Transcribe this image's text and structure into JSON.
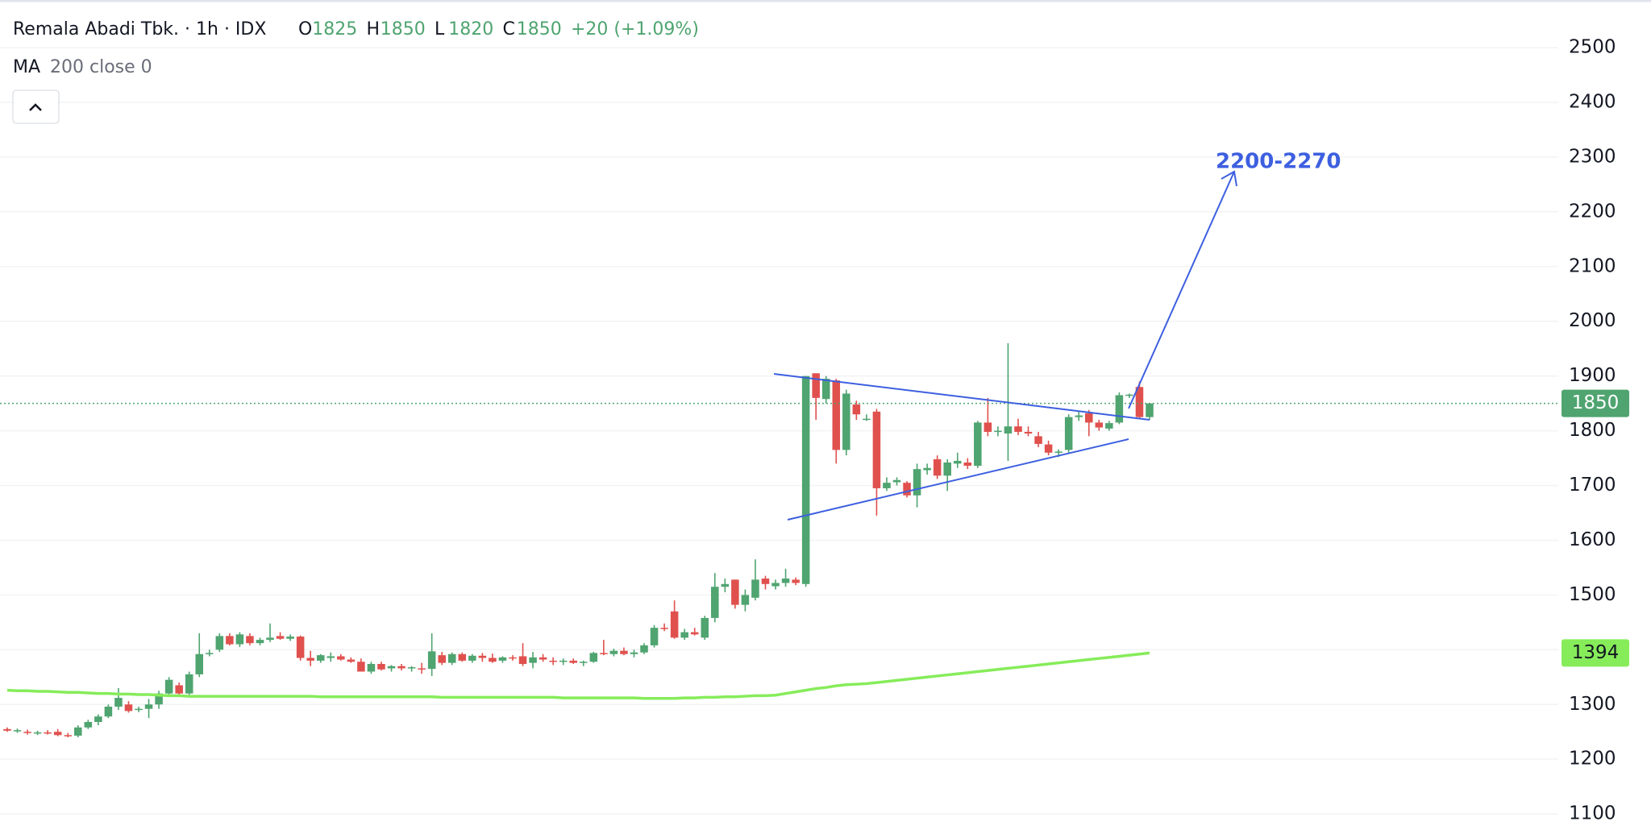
{
  "chart_data": {
    "type": "candlestick",
    "title": "Remala Abadi Tbk. · 1h · IDX",
    "quote_labels": [
      "O",
      "H",
      "L",
      "C"
    ],
    "change": "+20 (+1.09%)",
    "indicator": {
      "name": "MA",
      "params": "200 close 0"
    },
    "annotation": "2200-2270",
    "up_color": "#4fa470",
    "down_color": "#e0514e",
    "ohlc": [
      [
        1255,
        1258,
        1250,
        1252
      ],
      [
        1252,
        1256,
        1248,
        1253
      ],
      [
        1250,
        1254,
        1245,
        1248
      ],
      [
        1248,
        1252,
        1244,
        1249
      ],
      [
        1249,
        1253,
        1245,
        1247
      ],
      [
        1250,
        1255,
        1242,
        1244
      ],
      [
        1244,
        1248,
        1240,
        1243
      ],
      [
        1243,
        1262,
        1240,
        1258
      ],
      [
        1258,
        1272,
        1255,
        1268
      ],
      [
        1268,
        1282,
        1262,
        1278
      ],
      [
        1278,
        1300,
        1275,
        1296
      ],
      [
        1296,
        1330,
        1290,
        1312
      ],
      [
        1300,
        1306,
        1285,
        1288
      ],
      [
        1290,
        1296,
        1286,
        1292
      ],
      [
        1292,
        1310,
        1275,
        1300
      ],
      [
        1300,
        1325,
        1292,
        1320
      ],
      [
        1320,
        1350,
        1315,
        1345
      ],
      [
        1335,
        1340,
        1318,
        1320
      ],
      [
        1320,
        1360,
        1315,
        1355
      ],
      [
        1355,
        1430,
        1350,
        1392
      ],
      [
        1392,
        1400,
        1388,
        1394
      ],
      [
        1400,
        1430,
        1396,
        1425
      ],
      [
        1425,
        1430,
        1408,
        1410
      ],
      [
        1410,
        1432,
        1405,
        1428
      ],
      [
        1425,
        1430,
        1408,
        1412
      ],
      [
        1412,
        1422,
        1408,
        1418
      ],
      [
        1418,
        1448,
        1414,
        1422
      ],
      [
        1425,
        1432,
        1418,
        1420
      ],
      [
        1420,
        1428,
        1416,
        1424
      ],
      [
        1424,
        1426,
        1380,
        1385
      ],
      [
        1385,
        1398,
        1370,
        1380
      ],
      [
        1380,
        1392,
        1376,
        1390
      ],
      [
        1385,
        1395,
        1378,
        1388
      ],
      [
        1388,
        1392,
        1380,
        1382
      ],
      [
        1382,
        1386,
        1376,
        1378
      ],
      [
        1378,
        1384,
        1360,
        1360
      ],
      [
        1360,
        1378,
        1356,
        1374
      ],
      [
        1374,
        1378,
        1362,
        1364
      ],
      [
        1366,
        1372,
        1360,
        1370
      ],
      [
        1370,
        1374,
        1362,
        1366
      ],
      [
        1366,
        1370,
        1360,
        1368
      ],
      [
        1366,
        1376,
        1356,
        1365
      ],
      [
        1365,
        1430,
        1352,
        1397
      ],
      [
        1390,
        1396,
        1372,
        1376
      ],
      [
        1376,
        1395,
        1372,
        1392
      ],
      [
        1392,
        1395,
        1378,
        1380
      ],
      [
        1380,
        1392,
        1376,
        1389
      ],
      [
        1389,
        1394,
        1378,
        1385
      ],
      [
        1385,
        1393,
        1376,
        1378
      ],
      [
        1380,
        1388,
        1376,
        1386
      ],
      [
        1386,
        1390,
        1380,
        1384
      ],
      [
        1388,
        1412,
        1370,
        1374
      ],
      [
        1376,
        1396,
        1366,
        1386
      ],
      [
        1386,
        1392,
        1378,
        1382
      ],
      [
        1380,
        1386,
        1372,
        1378
      ],
      [
        1378,
        1384,
        1372,
        1380
      ],
      [
        1380,
        1384,
        1374,
        1376
      ],
      [
        1376,
        1380,
        1370,
        1378
      ],
      [
        1378,
        1396,
        1376,
        1394
      ],
      [
        1394,
        1418,
        1390,
        1392
      ],
      [
        1392,
        1402,
        1388,
        1398
      ],
      [
        1398,
        1404,
        1390,
        1392
      ],
      [
        1392,
        1400,
        1386,
        1395
      ],
      [
        1395,
        1412,
        1392,
        1408
      ],
      [
        1408,
        1445,
        1404,
        1440
      ],
      [
        1440,
        1448,
        1434,
        1438
      ],
      [
        1470,
        1490,
        1420,
        1422
      ],
      [
        1422,
        1438,
        1418,
        1432
      ],
      [
        1432,
        1440,
        1426,
        1428
      ],
      [
        1422,
        1462,
        1418,
        1458
      ],
      [
        1458,
        1540,
        1450,
        1515
      ],
      [
        1515,
        1530,
        1505,
        1520
      ],
      [
        1528,
        1528,
        1475,
        1482
      ],
      [
        1482,
        1510,
        1470,
        1500
      ],
      [
        1495,
        1565,
        1490,
        1528
      ],
      [
        1530,
        1535,
        1510,
        1520
      ],
      [
        1516,
        1528,
        1510,
        1522
      ],
      [
        1522,
        1548,
        1515,
        1530
      ],
      [
        1528,
        1532,
        1518,
        1522
      ],
      [
        1520,
        1900,
        1515,
        1900
      ],
      [
        1905,
        1905,
        1820,
        1860
      ],
      [
        1858,
        1900,
        1850,
        1895
      ],
      [
        1892,
        1895,
        1740,
        1765
      ],
      [
        1765,
        1875,
        1755,
        1868
      ],
      [
        1848,
        1855,
        1820,
        1830
      ],
      [
        1822,
        1830,
        1818,
        1822
      ],
      [
        1835,
        1840,
        1645,
        1695
      ],
      [
        1695,
        1715,
        1690,
        1705
      ],
      [
        1706,
        1715,
        1700,
        1710
      ],
      [
        1705,
        1708,
        1678,
        1682
      ],
      [
        1682,
        1740,
        1660,
        1730
      ],
      [
        1728,
        1740,
        1720,
        1732
      ],
      [
        1748,
        1755,
        1712,
        1718
      ],
      [
        1718,
        1748,
        1690,
        1742
      ],
      [
        1740,
        1760,
        1732,
        1745
      ],
      [
        1742,
        1750,
        1730,
        1736
      ],
      [
        1736,
        1818,
        1732,
        1815
      ],
      [
        1815,
        1860,
        1790,
        1798
      ],
      [
        1798,
        1808,
        1790,
        1800
      ],
      [
        1795,
        1960,
        1745,
        1808
      ],
      [
        1808,
        1822,
        1792,
        1798
      ],
      [
        1798,
        1808,
        1790,
        1795
      ],
      [
        1790,
        1798,
        1770,
        1776
      ],
      [
        1775,
        1782,
        1755,
        1760
      ],
      [
        1760,
        1766,
        1752,
        1762
      ],
      [
        1765,
        1830,
        1760,
        1825
      ],
      [
        1825,
        1835,
        1818,
        1828
      ],
      [
        1832,
        1838,
        1790,
        1815
      ],
      [
        1815,
        1820,
        1800,
        1806
      ],
      [
        1804,
        1818,
        1800,
        1814
      ],
      [
        1815,
        1870,
        1812,
        1865
      ],
      [
        1865,
        1868,
        1860,
        1866
      ],
      [
        1880,
        1890,
        1822,
        1825
      ],
      [
        1825,
        1850,
        1820,
        1850
      ]
    ],
    "series": [
      {
        "name": "MA",
        "color": "#86ec5a",
        "values": [
          1326,
          1325,
          1325,
          1324,
          1324,
          1323,
          1322,
          1322,
          1321,
          1320,
          1320,
          1319,
          1319,
          1318,
          1318,
          1317,
          1316,
          1316,
          1315,
          1315,
          1315,
          1315,
          1315,
          1315,
          1315,
          1315,
          1315,
          1315,
          1315,
          1315,
          1315,
          1314,
          1314,
          1314,
          1314,
          1314,
          1314,
          1314,
          1314,
          1314,
          1314,
          1314,
          1314,
          1313,
          1313,
          1313,
          1313,
          1313,
          1313,
          1313,
          1313,
          1313,
          1313,
          1313,
          1313,
          1312,
          1312,
          1312,
          1312,
          1312,
          1312,
          1312,
          1312,
          1311,
          1311,
          1311,
          1311,
          1312,
          1312,
          1313,
          1313,
          1314,
          1314,
          1315,
          1316,
          1316,
          1317,
          1320,
          1323,
          1326,
          1329,
          1331,
          1334,
          1336,
          1337,
          1338,
          1340,
          1342,
          1344,
          1346,
          1348,
          1350,
          1352,
          1354,
          1356,
          1358,
          1360,
          1362,
          1364,
          1366,
          1368,
          1370,
          1372,
          1374,
          1376,
          1378,
          1380,
          1382,
          1384,
          1386,
          1388,
          1390,
          1392,
          1394
        ]
      }
    ],
    "ylim": [
      1056,
      2587
    ],
    "yticks": [
      1100,
      1200,
      1300,
      1400,
      1500,
      1600,
      1700,
      1800,
      1900,
      2000,
      2100,
      2200,
      2300,
      2400,
      2500
    ],
    "grid": true
  }
}
